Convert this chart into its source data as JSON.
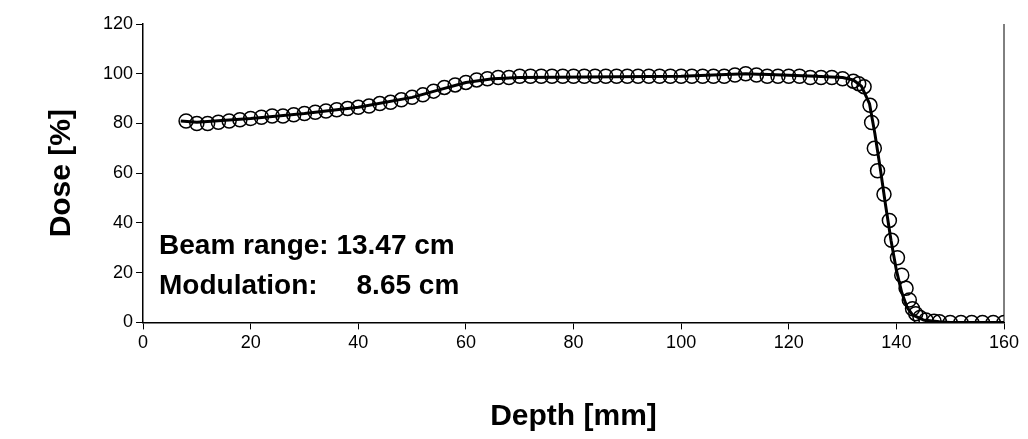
{
  "chart_data": {
    "type": "scatter",
    "xlabel": "Depth [mm]",
    "ylabel": "Dose [%]",
    "xlim": [
      0,
      160
    ],
    "ylim": [
      0,
      120
    ],
    "xticks": [
      0,
      20,
      40,
      60,
      80,
      100,
      120,
      140,
      160
    ],
    "yticks": [
      0,
      20,
      40,
      60,
      80,
      100,
      120
    ],
    "grid": false,
    "legend": false,
    "annotations": [
      "Beam range: 13.47 cm",
      "Modulation:     8.65 cm"
    ],
    "series": [
      {
        "marker": "circle",
        "color": "#000000",
        "x": [
          8,
          10,
          12,
          14,
          16,
          18,
          20,
          22,
          24,
          26,
          28,
          30,
          32,
          34,
          36,
          38,
          40,
          42,
          44,
          46,
          48,
          50,
          52,
          54,
          56,
          58,
          60,
          62,
          64,
          66,
          68,
          70,
          72,
          74,
          76,
          78,
          80,
          82,
          84,
          86,
          88,
          90,
          92,
          94,
          96,
          98,
          100,
          102,
          104,
          106,
          108,
          110,
          112,
          114,
          116,
          118,
          120,
          122,
          124,
          126,
          128,
          130,
          132,
          133,
          134,
          135.1,
          135.4,
          135.9,
          136.5,
          137.7,
          138.7,
          139.1,
          140.2,
          141,
          141.8,
          142.4,
          143,
          143.6,
          144.4,
          145.5,
          147,
          148,
          150,
          152,
          154,
          156,
          158,
          160
        ],
        "values": [
          81,
          80,
          80,
          80.5,
          81,
          81.5,
          82,
          82.5,
          83,
          83,
          83.5,
          84,
          84.5,
          85,
          85.5,
          86,
          86.5,
          87,
          88,
          88.5,
          89.5,
          90.5,
          91.5,
          93,
          94.5,
          95.5,
          96.5,
          97.5,
          98,
          98.5,
          98.5,
          99,
          99,
          99,
          99,
          99,
          99,
          99,
          99,
          99,
          99,
          99,
          99,
          99,
          99,
          99,
          99,
          99,
          99,
          99,
          99,
          99.5,
          100,
          99.5,
          99,
          99,
          99,
          99,
          98.5,
          98.5,
          98.5,
          98,
          97,
          96,
          94.8,
          87.3,
          80.4,
          70,
          61,
          51.5,
          41,
          33,
          26,
          19,
          13.7,
          9,
          5.5,
          3.5,
          2,
          1,
          0.5,
          0.3,
          0,
          0,
          0,
          0,
          0,
          0
        ]
      },
      {
        "type": "line",
        "marker": "none",
        "line_style": "solid",
        "color": "#000000",
        "x": [
          7,
          10,
          20,
          30,
          40,
          50,
          55,
          60,
          65,
          70,
          100,
          112,
          125,
          130,
          132,
          133.5,
          135,
          136,
          137,
          138,
          139,
          140,
          141,
          142,
          143,
          145,
          148,
          150,
          160
        ],
        "values": [
          81,
          80.5,
          82,
          84,
          86.5,
          90.5,
          93.5,
          96.5,
          98,
          98.5,
          99,
          100,
          99,
          98.5,
          97.5,
          95,
          88,
          76,
          62,
          47,
          33,
          21,
          12,
          6,
          3,
          1,
          0.3,
          0,
          0
        ]
      }
    ]
  }
}
